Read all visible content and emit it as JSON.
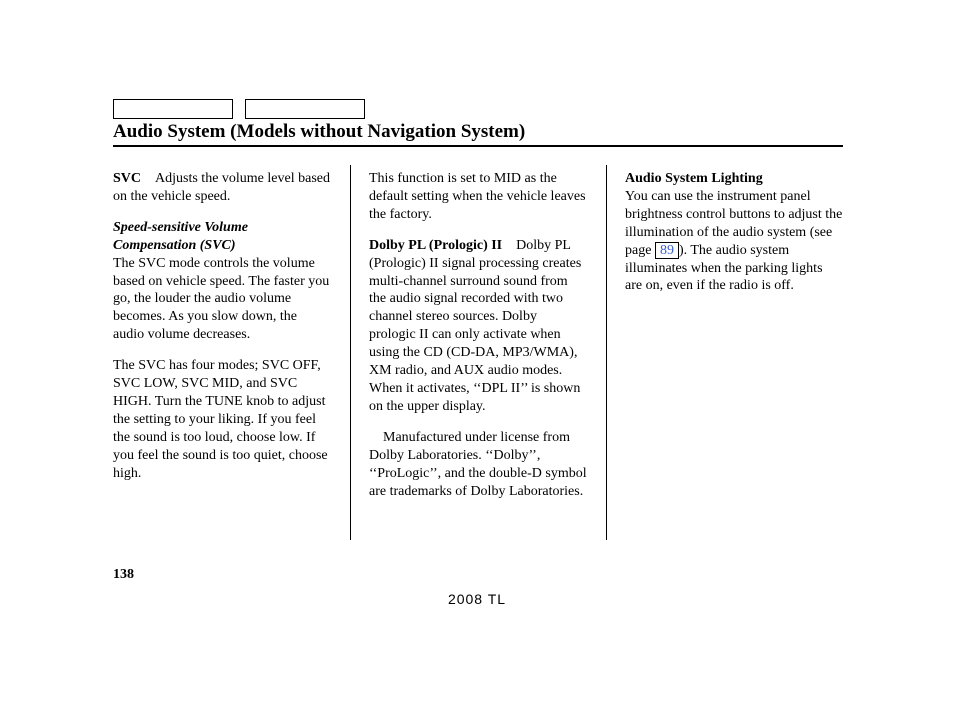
{
  "header": {
    "title": "Audio System (Models without Navigation System)"
  },
  "col1": {
    "svc_label": "SVC",
    "svc_gap": " ",
    "svc_text": "Adjusts the volume level based on the vehicle speed.",
    "svc_sub": "Speed-sensitive Volume Compensation (SVC)",
    "svc_desc": "The SVC mode controls the volume based on vehicle speed. The faster you go, the louder the audio volume becomes. As you slow down, the audio volume decreases.",
    "svc_modes": "The SVC has four modes; SVC OFF, SVC LOW, SVC MID, and SVC HIGH. Turn the TUNE knob to adjust the setting to your liking. If you feel the sound is too loud, choose low. If you feel the sound is too quiet, choose high."
  },
  "col2": {
    "mid": "This function is set to MID as the default setting when the vehicle leaves the factory.",
    "dpl_label": "Dolby PL (Prologic) II",
    "dpl_gap": " ",
    "dpl_text": "Dolby PL (Prologic) II signal processing creates multi-channel surround sound from the audio signal recorded with two channel stereo sources. Dolby prologic II can only activate when using the CD (CD-DA, MP3/WMA), XM radio, and AUX audio modes. When it activates, ‘‘DPL II’’ is shown on the upper display.",
    "license_indent": " ",
    "license": "Manufactured under license from Dolby Laboratories. ‘‘Dolby’’, ‘‘ProLogic’’, and the double-D symbol are trademarks of Dolby Laboratories."
  },
  "col3": {
    "lighting_label": "Audio System Lighting",
    "lighting_a": "You can use the instrument panel brightness control buttons to adjust the illumination of the audio system (see page",
    "page_ref": "89",
    "lighting_b": "). The audio system illuminates when the parking lights are on, even if the radio is off."
  },
  "footer": {
    "page_number": "138",
    "model": "2008  TL"
  }
}
